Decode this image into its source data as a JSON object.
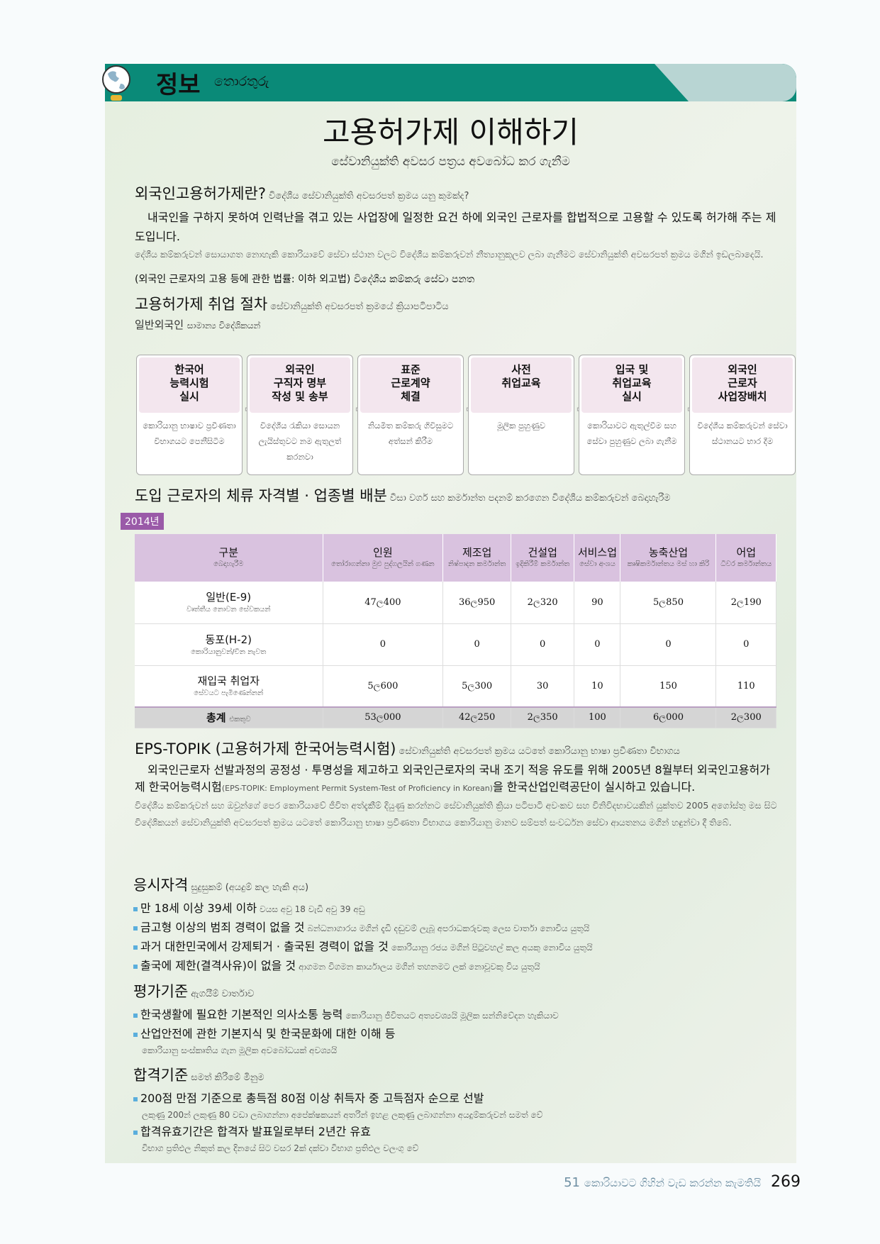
{
  "header": {
    "ko": "정보",
    "si": "තොරතුරු"
  },
  "title": {
    "ko": "고용허가제 이해하기",
    "si": "සේවානියුක්ති අවසර පත්‍රය අවබෝධ කර ගැනීම"
  },
  "what": {
    "heading": "외국인고용허가제란?",
    "heading_si": "විදේශීය සේවානියුක්ති අවසරපත් ක්‍රමය යනු කුමක්ද?",
    "body": "내국인을 구하지 못하여 인력난을 겪고 있는 사업장에 일정한 요건 하에 외국인 근로자를 합법적으로 고용할 수 있도록 허가해 주는 제도입니다.",
    "body_si": "දේශීය කම්කරුවන් සොයාගත නොහැකි කොරියාවේ සේවා ස්ථාන වලට විදේශීය කම්කරුවන් නීත්‍යානුකූලව ලබා ගැනීමට සේවානියුක්ති අවසරපත් ක්‍රමය මගින් ඉඩලබාදෙයි.",
    "law": "(외국인 근로자의 고용 등에 관한 법률: 이하 외고법) විදේශීය කම්කරු සේවා පනත"
  },
  "procedure": {
    "heading": "고용허가제 취업 절차",
    "heading_si": "සේවානියුක්ති අවසරපත් ක්‍රමයේ ක්‍රියාපටිපාටිය",
    "sub": "일반외국인",
    "sub_si": "සාමාන්‍ය විදේශිකයන්",
    "steps": [
      {
        "ko": "한국어\n능력시험\n실시",
        "si": "කොරියානු භාෂාව ප්‍රවීණතා විභාගයට පෙනීසිටීම"
      },
      {
        "ko": "외국인\n구직자 명부\n작성 및 송부",
        "si": "විදේශීය රැකියා සොයන ලැයිස්තුවට නම ඇතුලත් කරනවා"
      },
      {
        "ko": "표준\n근로계약\n체결",
        "si": "නියමිත කම්කරු ගිවිසුමට අත්සන් කිරීම"
      },
      {
        "ko": "사전\n취업교육",
        "si": "මූලික පුහුණුව"
      },
      {
        "ko": "입국 및\n취업교육\n실시",
        "si": "කොරියාවට ඇතුල්වීම සහ සේවා පුහුණුව ලබා ගැනීම"
      },
      {
        "ko": "외국인\n근로자\n사업장배치",
        "si": "විදේශීය කම්කරුවන් සේවා ස්ථානයට භාර දීම"
      }
    ]
  },
  "distribution": {
    "heading": "도입 근로자의 체류 자격별 · 업종별 배분",
    "heading_si": "වීසා වර්ග සහ කර්මාන්ත පදනම් කරගෙන විදේශීය කම්කරුවන් බෙදාහැරීම",
    "year": "2014년",
    "columns": [
      {
        "ko": "구분",
        "si": "බෙදාහැරීම"
      },
      {
        "ko": "인원",
        "si": "තෝරාගන්නා මුළු පුද්ගලයින් ගණන"
      },
      {
        "ko": "제조업",
        "si": "නිෂ්පාදන කර්මාන්ත"
      },
      {
        "ko": "건설업",
        "si": "ඉදිකිරීම් කර්මාන්ත"
      },
      {
        "ko": "서비스업",
        "si": "සේවා අංශය"
      },
      {
        "ko": "농축산업",
        "si": "කෘෂිකර්මාන්තය මස් හා කිරි"
      },
      {
        "ko": "어업",
        "si": "ධීවර කර්මාන්තය"
      }
    ],
    "rows": [
      {
        "ko": "일반(E-9)",
        "si": "වෘත්තීය නොවන සේවකයන්",
        "values": [
          "47ල400",
          "36ල950",
          "2ල320",
          "90",
          "5ල850",
          "2ල190"
        ]
      },
      {
        "ko": "동포(H-2)",
        "si": "කොරියානුවන්/චීන නැවත",
        "values": [
          "0",
          "0",
          "0",
          "0",
          "0",
          "0"
        ]
      },
      {
        "ko": "재입국 취업자",
        "si": "සේවයට පැමිණෙන්නන්",
        "values": [
          "5ල600",
          "5ල300",
          "30",
          "10",
          "150",
          "110"
        ]
      },
      {
        "ko": "총계",
        "si": "එකතුව",
        "values": [
          "53ල000",
          "42ල250",
          "2ල350",
          "100",
          "6ල000",
          "2ල300"
        ]
      }
    ]
  },
  "topik": {
    "heading": "EPS-TOPIK (고용허가제 한국어능력시험)",
    "heading_si": "සේවානියුක්ති අවසරපත් ක්‍රමය යටතේ කොරියානු භාෂා ප්‍රවීණතා විභාගය",
    "body1": "외국인근로자 선발과정의 공정성 · 투명성을 제고하고 외국인근로자의 국내 조기 적응 유도를 위해 2005년 8월부터 외국인고용허가제 한국어능력시험",
    "body_mid": "(EPS-TOPIK: Employment Permit System-Test of Proficiency in Korean)",
    "body2": "을 한국산업인력공단이 실시하고 있습니다.",
    "body_si": "විදේශීය කම්කරුවන් සහ ඔවුන්ගේ පෙර කොරියාවේ ජීවිත අත්දැකීම් දියුණු කරන්නට සේවානියුක්ති ක්‍රියා පටිපාටි අවංකව සහ විනිවිදභාවයකින් යුක්තව 2005 අගෝස්තු මස සිට විදේශිකයන් සේවානියුක්ති අවසරපත් ක්‍රමය යටතේ කොරියානු භාෂා ප්‍රවීණතා විභාගය කොරියානු මානව සම්පත් සංවර්ධන සේවා ආයතනය මගින් හඳුන්වා දී තිබේ."
  },
  "eligibility": {
    "heading": "응시자격",
    "heading_si": "සුදුසුකම් (අයදුම් කල හැකි අය)",
    "items": [
      {
        "ko": "만 18세 이상 39세 이하",
        "si": "වයස අවු 18 වැඩි අවු 39 අඩු"
      },
      {
        "ko": "금고형 이상의 범죄 경력이 없을 것",
        "si": "බන්ධනාගාරය මගින් දැඩි දඬුවම් ලැබූ අපරාධකරුවකු ලෙස වාර්තා නොවිය යුතුයි"
      },
      {
        "ko": "과거 대한민국에서 강제퇴거 · 출국된 경력이 없을 것",
        "si": "කොරියානු රජය මගින් පිටුවහල් කල අයකු නොවිය යුතුයි"
      },
      {
        "ko": "출국에 제한(결격사유)이 없을 것",
        "si": "ආගමන විගමන කාර්යාලය මගින් තහනමට ලක් නොවූවකු විය යුතුයි"
      }
    ]
  },
  "evaluation": {
    "heading": "평가기준",
    "heading_si": "ඇගයීම් වාර්තාව",
    "items": [
      {
        "ko": "한국생활에 필요한 기본적인 의사소통 능력",
        "si": "කොරියානු ජීවිතයට අත්‍යවශ්‍යයි මූලික සන්නිවේදන හැකියාව"
      },
      {
        "ko": "산업안전에 관한 기본지식 및 한국문화에 대한 이해 등",
        "si": "කොරියානු සංස්කෘතිය ගැන මූලික අවබෝධයක් අවශ්‍යයි"
      }
    ]
  },
  "passing": {
    "heading": "합격기준",
    "heading_si": "සමත් කිරීමේ මිනුම",
    "items": [
      {
        "ko": "200점 만점 기준으로 총득점 80점 이상 취득자 중 고득점자 순으로 선발",
        "si": "ලකුණු 200න් ලකුණු 80 වඩා ලබාගන්නා අපේක්ෂකයන් අතරින් ඉහළ ලකුණු ලබාගන්නා අයදුම්කරුවන් සමත් වේ"
      },
      {
        "ko": "합격유효기간은 합격자 발표일로부터 2년간 유효",
        "si": "විභාග ප්‍රතිඵල නිකුත් කල දිනයේ සිට වසර 2ක් දක්වා විභාග ප්‍රතිඵල වලංගු වේ"
      }
    ]
  },
  "footer": {
    "chapter": "51",
    "chapter_title": "කොරියාවට ගිහින් වැඩ කරන්න කැමතියි",
    "page": "269"
  },
  "colors": {
    "band": "#0a8a78",
    "header_cell": "#d9c2df",
    "year_badge": "#9a5aa8",
    "bullet": "#5aaedc"
  }
}
